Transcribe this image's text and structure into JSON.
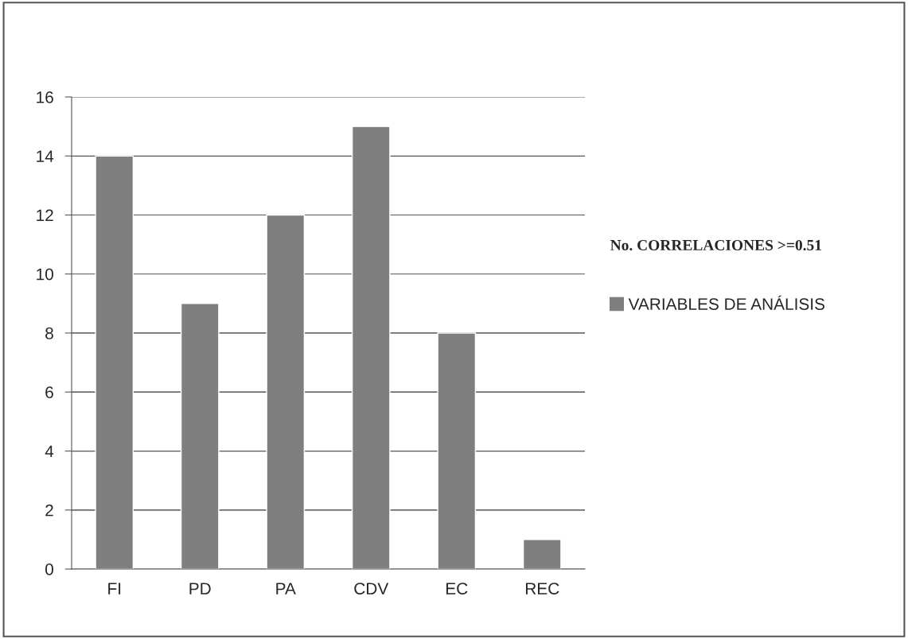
{
  "chart_data": {
    "type": "bar",
    "categories": [
      "FI",
      "PD",
      "PA",
      "CDV",
      "EC",
      "REC"
    ],
    "series": [
      {
        "name": "VARIABLES DE ANÁLISIS",
        "color": "#7f7f7f",
        "values": [
          14,
          9,
          12,
          15,
          8,
          1
        ]
      }
    ],
    "legend_title": "No. CORRELACIONES >=0.51",
    "ylim": [
      0,
      16
    ],
    "yticks": [
      0,
      2,
      4,
      6,
      8,
      10,
      12,
      14,
      16
    ],
    "grid": "y",
    "legend": "right"
  }
}
